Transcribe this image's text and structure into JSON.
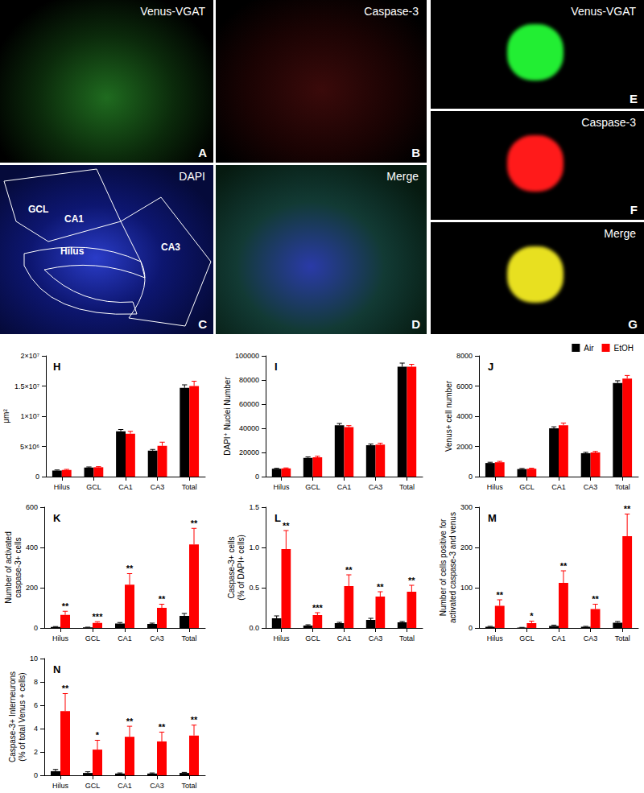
{
  "image_panels": [
    {
      "panel": "A",
      "label": "Venus-VGAT"
    },
    {
      "panel": "B",
      "label": "Caspase-3"
    },
    {
      "panel": "C",
      "label": "DAPI",
      "regions": [
        "CA1",
        "GCL",
        "Hilus",
        "CA3"
      ]
    },
    {
      "panel": "D",
      "label": "Merge"
    },
    {
      "panel": "E",
      "label": "Venus-VGAT"
    },
    {
      "panel": "F",
      "label": "Caspase-3"
    },
    {
      "panel": "G",
      "label": "Merge"
    }
  ],
  "chart_data": [
    {
      "type": "bar",
      "panel": "H",
      "ylabel": "μm²",
      "categories": [
        "Hilus",
        "GCL",
        "CA1",
        "CA3",
        "Total"
      ],
      "ylim": [
        0,
        20000000
      ],
      "yticks": [
        0,
        {
          "value": 5000000,
          "label": "5×10⁶"
        },
        {
          "value": 10000000,
          "label": "1×10⁷"
        },
        {
          "value": 15000000,
          "label": "1.5×10⁷"
        },
        {
          "value": 20000000,
          "label": "2×10⁷"
        }
      ],
      "grid": false,
      "series": [
        {
          "name": "Air",
          "color": "#000000",
          "values": [
            1000000,
            1500000,
            7500000,
            4300000,
            14700000
          ],
          "errors": [
            100000,
            100000,
            300000,
            200000,
            500000
          ]
        },
        {
          "name": "EtOH",
          "color": "#ff0000",
          "values": [
            1100000,
            1550000,
            7100000,
            5100000,
            15000000
          ],
          "errors": [
            100000,
            100000,
            400000,
            600000,
            800000
          ]
        }
      ]
    },
    {
      "type": "bar",
      "panel": "I",
      "ylabel": "DAPI⁺ Nuclei Number",
      "categories": [
        "Hilus",
        "GCL",
        "CA1",
        "CA3",
        "Total"
      ],
      "ylim": [
        0,
        100000
      ],
      "yticks": [
        0,
        20000,
        40000,
        60000,
        80000,
        100000
      ],
      "grid": false,
      "series": [
        {
          "name": "Air",
          "color": "#000000",
          "values": [
            6500,
            15500,
            42500,
            26000,
            91000
          ],
          "errors": [
            400,
            800,
            1500,
            1000,
            3000
          ]
        },
        {
          "name": "EtOH",
          "color": "#ff0000",
          "values": [
            6800,
            16000,
            41000,
            26500,
            91000
          ],
          "errors": [
            400,
            900,
            1200,
            1200,
            2000
          ]
        }
      ]
    },
    {
      "type": "bar",
      "panel": "J",
      "ylabel": "Venus+ cell number",
      "categories": [
        "Hilus",
        "GCL",
        "CA1",
        "CA3",
        "Total"
      ],
      "ylim": [
        0,
        8000
      ],
      "yticks": [
        0,
        2000,
        4000,
        6000,
        8000
      ],
      "grid": false,
      "legend": "upper right",
      "series": [
        {
          "name": "Air",
          "color": "#000000",
          "values": [
            900,
            500,
            3200,
            1550,
            6200
          ],
          "errors": [
            50,
            40,
            100,
            60,
            150
          ]
        },
        {
          "name": "EtOH",
          "color": "#ff0000",
          "values": [
            950,
            520,
            3400,
            1600,
            6500
          ],
          "errors": [
            60,
            40,
            150,
            70,
            200
          ]
        }
      ]
    },
    {
      "type": "bar",
      "panel": "K",
      "ylabel": "Number of activated\ncaspase-3+ cells",
      "categories": [
        "Hilus",
        "GCL",
        "CA1",
        "CA3",
        "Total"
      ],
      "ylim": [
        0,
        600
      ],
      "yticks": [
        0,
        200,
        400,
        600
      ],
      "grid": false,
      "series": [
        {
          "name": "Air",
          "color": "#000000",
          "values": [
            5,
            3,
            22,
            20,
            60
          ],
          "errors": [
            2,
            1,
            5,
            4,
            12
          ]
        },
        {
          "name": "EtOH",
          "color": "#ff0000",
          "values": [
            65,
            25,
            215,
            100,
            415
          ],
          "errors": [
            18,
            6,
            55,
            18,
            80
          ],
          "annotations": [
            "**",
            "***",
            "**",
            "**",
            "**"
          ]
        }
      ]
    },
    {
      "type": "bar",
      "panel": "L",
      "ylabel": "Caspase-3+ cells\n(% of DAPI+ cells)",
      "categories": [
        "Hilus",
        "GCL",
        "CA1",
        "CA3",
        "Total"
      ],
      "ylim": [
        0,
        1.5
      ],
      "yticks": [
        {
          "value": 0,
          "label": "0.0"
        },
        0.5,
        {
          "value": 1,
          "label": "1.0"
        },
        1.5
      ],
      "grid": false,
      "series": [
        {
          "name": "Air",
          "color": "#000000",
          "values": [
            0.12,
            0.03,
            0.06,
            0.1,
            0.07
          ],
          "errors": [
            0.03,
            0.01,
            0.01,
            0.02,
            0.01
          ]
        },
        {
          "name": "EtOH",
          "color": "#ff0000",
          "values": [
            0.98,
            0.16,
            0.52,
            0.39,
            0.45
          ],
          "errors": [
            0.23,
            0.03,
            0.14,
            0.06,
            0.08
          ],
          "annotations": [
            "**",
            "***",
            "**",
            "**",
            "**"
          ]
        }
      ]
    },
    {
      "type": "bar",
      "panel": "M",
      "ylabel": "Number of cells positive for\nactivated caspase-3 and venus",
      "categories": [
        "Hilus",
        "GCL",
        "CA1",
        "CA3",
        "Total"
      ],
      "ylim": [
        0,
        300
      ],
      "yticks": [
        0,
        100,
        200,
        300
      ],
      "grid": false,
      "series": [
        {
          "name": "Air",
          "color": "#000000",
          "values": [
            3,
            1,
            5,
            3,
            13
          ],
          "errors": [
            1,
            0.5,
            2,
            1,
            3
          ]
        },
        {
          "name": "EtOH",
          "color": "#ff0000",
          "values": [
            55,
            12,
            112,
            47,
            228
          ],
          "errors": [
            15,
            5,
            30,
            12,
            55
          ],
          "annotations": [
            "**",
            "*",
            "**",
            "**",
            "**"
          ]
        }
      ]
    },
    {
      "type": "bar",
      "panel": "N",
      "ylabel": "Caspase-3+ Interneurons\n(% of total Venus + cells)",
      "categories": [
        "Hilus",
        "GCL",
        "CA1",
        "CA3",
        "Total"
      ],
      "ylim": [
        0,
        10
      ],
      "yticks": [
        0,
        2,
        4,
        6,
        8,
        10
      ],
      "grid": false,
      "series": [
        {
          "name": "Air",
          "color": "#000000",
          "values": [
            0.35,
            0.2,
            0.15,
            0.15,
            0.2
          ],
          "errors": [
            0.15,
            0.1,
            0.05,
            0.05,
            0.05
          ]
        },
        {
          "name": "EtOH",
          "color": "#ff0000",
          "values": [
            5.5,
            2.2,
            3.3,
            2.9,
            3.4
          ],
          "errors": [
            1.5,
            0.8,
            0.9,
            0.8,
            0.9
          ],
          "annotations": [
            "**",
            "*",
            "**",
            "**",
            "**"
          ]
        }
      ]
    }
  ]
}
